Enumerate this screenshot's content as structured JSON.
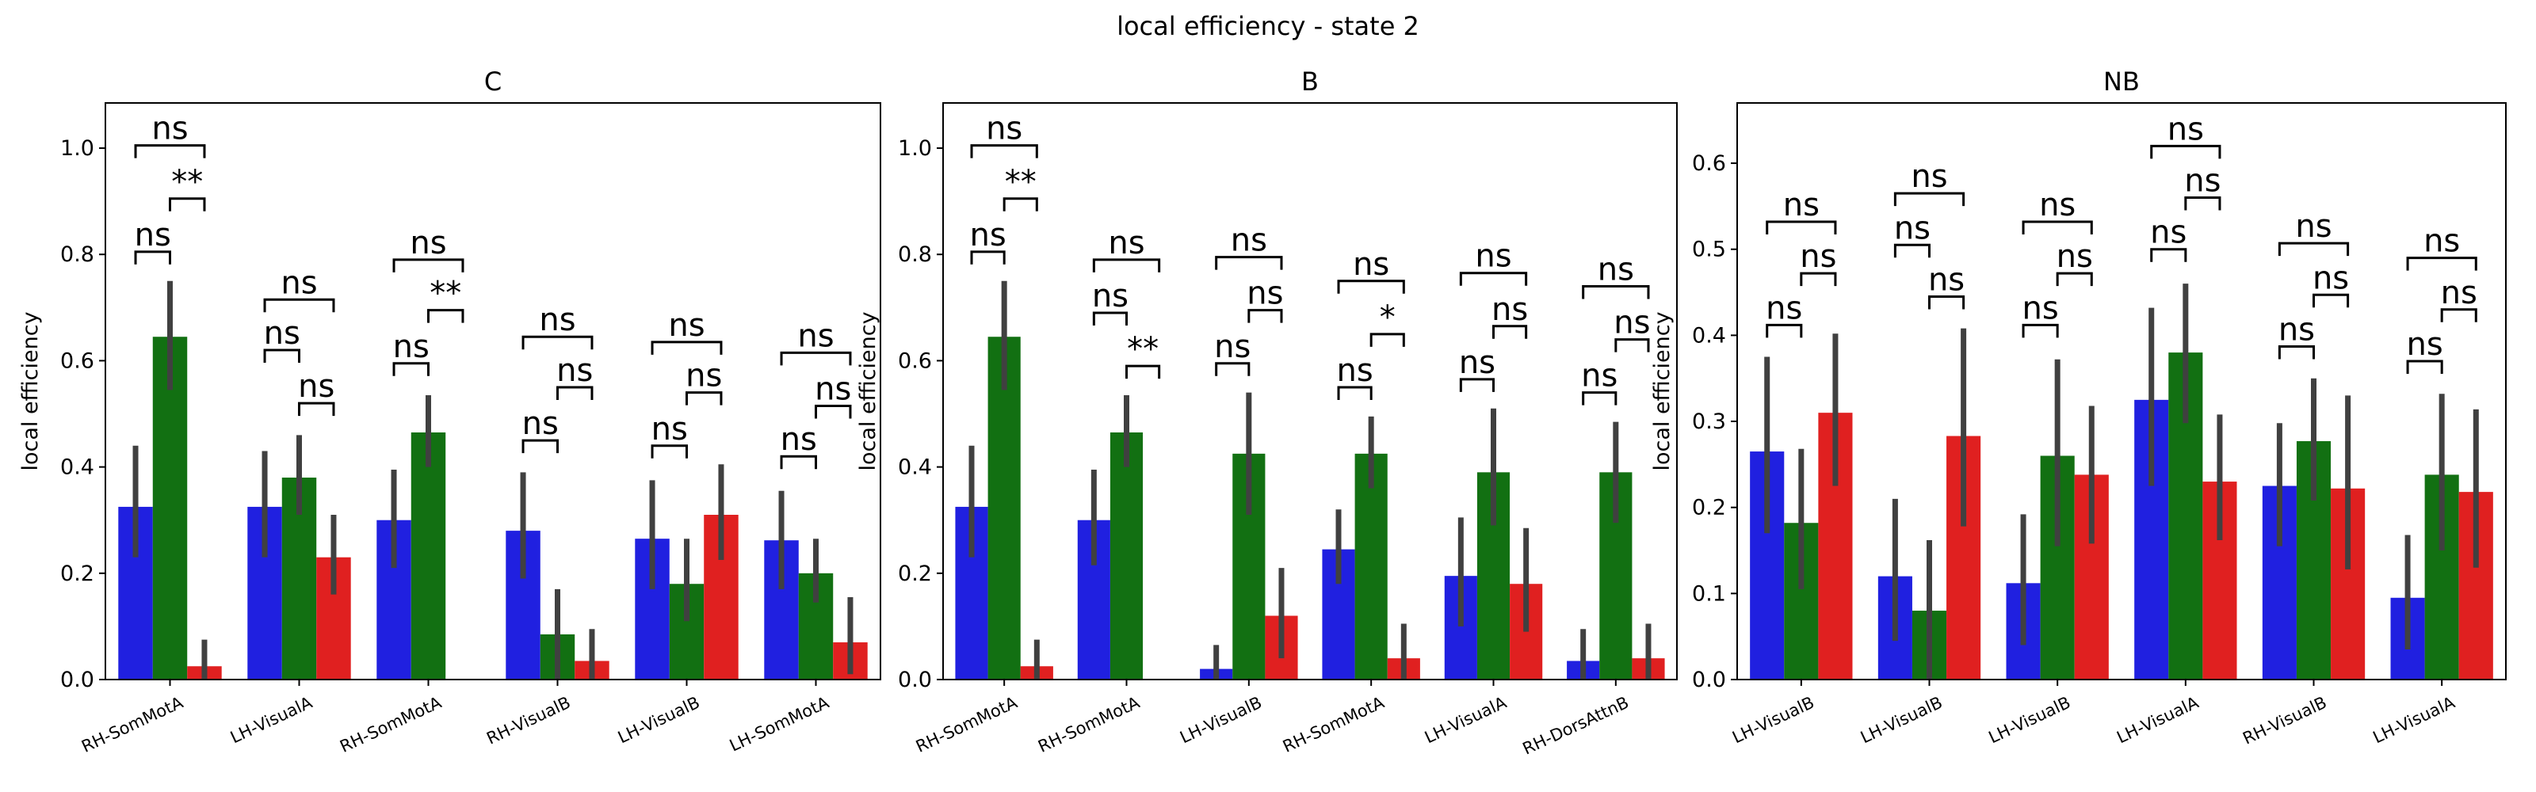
{
  "figure_title": "local efficiency - state 2",
  "colors": {
    "blue": "#2020e0",
    "green": "#127012",
    "red": "#e02020",
    "errbar": "#404040"
  },
  "chart_data": [
    {
      "type": "bar",
      "title": "C",
      "ylabel": "local efficiency",
      "ylim": [
        0,
        1.085
      ],
      "yticks": [
        "0.0",
        "0.2",
        "0.4",
        "0.6",
        "0.8",
        "1.0"
      ],
      "ytick_values": [
        0,
        0.2,
        0.4,
        0.6,
        0.8,
        1.0
      ],
      "categories": [
        "RH-SomMotA",
        "LH-VisualA",
        "RH-SomMotA",
        "RH-VisualB",
        "LH-VisualB",
        "LH-SomMotA"
      ],
      "series": [
        {
          "values": [
            0.325,
            0.325,
            0.3,
            0.28,
            0.265,
            0.262
          ],
          "err_low": [
            0.23,
            0.23,
            0.21,
            0.19,
            0.17,
            0.17
          ],
          "err_high": [
            0.44,
            0.43,
            0.395,
            0.39,
            0.375,
            0.355
          ]
        },
        {
          "values": [
            0.645,
            0.38,
            0.465,
            0.085,
            0.18,
            0.2
          ],
          "err_low": [
            0.545,
            0.31,
            0.4,
            0.0,
            0.11,
            0.145
          ],
          "err_high": [
            0.75,
            0.46,
            0.535,
            0.17,
            0.265,
            0.265
          ]
        },
        {
          "values": [
            0.025,
            0.23,
            0.0,
            0.035,
            0.31,
            0.07
          ],
          "err_low": [
            0.0,
            0.16,
            0.0,
            0.0,
            0.225,
            0.01
          ],
          "err_high": [
            0.075,
            0.31,
            0.0,
            0.095,
            0.405,
            0.155
          ]
        }
      ],
      "annotations": [
        {
          "category": 0,
          "pair": [
            0,
            1
          ],
          "level": 0.805,
          "text": "ns"
        },
        {
          "category": 0,
          "pair": [
            1,
            2
          ],
          "level": 0.905,
          "text": "**"
        },
        {
          "category": 0,
          "pair": [
            0,
            2
          ],
          "level": 1.005,
          "text": "ns"
        },
        {
          "category": 1,
          "pair": [
            0,
            1
          ],
          "level": 0.62,
          "text": "ns"
        },
        {
          "category": 1,
          "pair": [
            1,
            2
          ],
          "level": 0.52,
          "text": "ns"
        },
        {
          "category": 1,
          "pair": [
            0,
            2
          ],
          "level": 0.715,
          "text": "ns"
        },
        {
          "category": 2,
          "pair": [
            0,
            1
          ],
          "level": 0.595,
          "text": "ns"
        },
        {
          "category": 2,
          "pair": [
            1,
            2
          ],
          "level": 0.695,
          "text": "**"
        },
        {
          "category": 2,
          "pair": [
            0,
            2
          ],
          "level": 0.79,
          "text": "ns"
        },
        {
          "category": 3,
          "pair": [
            0,
            1
          ],
          "level": 0.45,
          "text": "ns"
        },
        {
          "category": 3,
          "pair": [
            1,
            2
          ],
          "level": 0.55,
          "text": "ns"
        },
        {
          "category": 3,
          "pair": [
            0,
            2
          ],
          "level": 0.645,
          "text": "ns"
        },
        {
          "category": 4,
          "pair": [
            0,
            1
          ],
          "level": 0.44,
          "text": "ns"
        },
        {
          "category": 4,
          "pair": [
            1,
            2
          ],
          "level": 0.54,
          "text": "ns"
        },
        {
          "category": 4,
          "pair": [
            0,
            2
          ],
          "level": 0.635,
          "text": "ns"
        },
        {
          "category": 5,
          "pair": [
            0,
            1
          ],
          "level": 0.42,
          "text": "ns"
        },
        {
          "category": 5,
          "pair": [
            1,
            2
          ],
          "level": 0.515,
          "text": "ns"
        },
        {
          "category": 5,
          "pair": [
            0,
            2
          ],
          "level": 0.615,
          "text": "ns"
        }
      ]
    },
    {
      "type": "bar",
      "title": "B",
      "ylabel": "local efficiency",
      "ylim": [
        0,
        1.085
      ],
      "yticks": [
        "0.0",
        "0.2",
        "0.4",
        "0.6",
        "0.8",
        "1.0"
      ],
      "ytick_values": [
        0,
        0.2,
        0.4,
        0.6,
        0.8,
        1.0
      ],
      "categories": [
        "RH-SomMotA",
        "RH-SomMotA",
        "LH-VisualB",
        "RH-SomMotA",
        "LH-VisualA",
        "RH-DorsAttnB"
      ],
      "series": [
        {
          "values": [
            0.325,
            0.3,
            0.02,
            0.245,
            0.195,
            0.035
          ],
          "err_low": [
            0.23,
            0.215,
            0.0,
            0.18,
            0.1,
            0.0
          ],
          "err_high": [
            0.44,
            0.395,
            0.065,
            0.32,
            0.305,
            0.095
          ]
        },
        {
          "values": [
            0.645,
            0.465,
            0.425,
            0.425,
            0.39,
            0.39
          ],
          "err_low": [
            0.545,
            0.4,
            0.31,
            0.36,
            0.29,
            0.295
          ],
          "err_high": [
            0.75,
            0.535,
            0.54,
            0.495,
            0.51,
            0.485
          ]
        },
        {
          "values": [
            0.025,
            0.0,
            0.12,
            0.04,
            0.18,
            0.04
          ],
          "err_low": [
            0.0,
            0.0,
            0.04,
            0.0,
            0.09,
            0.0
          ],
          "err_high": [
            0.075,
            0.0,
            0.21,
            0.105,
            0.285,
            0.105
          ]
        }
      ],
      "annotations": [
        {
          "category": 0,
          "pair": [
            0,
            1
          ],
          "level": 0.805,
          "text": "ns"
        },
        {
          "category": 0,
          "pair": [
            1,
            2
          ],
          "level": 0.905,
          "text": "**"
        },
        {
          "category": 0,
          "pair": [
            0,
            2
          ],
          "level": 1.005,
          "text": "ns"
        },
        {
          "category": 1,
          "pair": [
            0,
            1
          ],
          "level": 0.69,
          "text": "ns"
        },
        {
          "category": 1,
          "pair": [
            1,
            2
          ],
          "level": 0.59,
          "text": "**"
        },
        {
          "category": 1,
          "pair": [
            0,
            2
          ],
          "level": 0.79,
          "text": "ns"
        },
        {
          "category": 2,
          "pair": [
            0,
            1
          ],
          "level": 0.595,
          "text": "ns"
        },
        {
          "category": 2,
          "pair": [
            1,
            2
          ],
          "level": 0.695,
          "text": "ns"
        },
        {
          "category": 2,
          "pair": [
            0,
            2
          ],
          "level": 0.795,
          "text": "ns"
        },
        {
          "category": 3,
          "pair": [
            0,
            1
          ],
          "level": 0.55,
          "text": "ns"
        },
        {
          "category": 3,
          "pair": [
            1,
            2
          ],
          "level": 0.65,
          "text": "*"
        },
        {
          "category": 3,
          "pair": [
            0,
            2
          ],
          "level": 0.75,
          "text": "ns"
        },
        {
          "category": 4,
          "pair": [
            0,
            1
          ],
          "level": 0.565,
          "text": "ns"
        },
        {
          "category": 4,
          "pair": [
            1,
            2
          ],
          "level": 0.665,
          "text": "ns"
        },
        {
          "category": 4,
          "pair": [
            0,
            2
          ],
          "level": 0.765,
          "text": "ns"
        },
        {
          "category": 5,
          "pair": [
            0,
            1
          ],
          "level": 0.54,
          "text": "ns"
        },
        {
          "category": 5,
          "pair": [
            1,
            2
          ],
          "level": 0.64,
          "text": "ns"
        },
        {
          "category": 5,
          "pair": [
            0,
            2
          ],
          "level": 0.74,
          "text": "ns"
        }
      ]
    },
    {
      "type": "bar",
      "title": "NB",
      "ylabel": "local efficiency",
      "ylim": [
        0,
        0.67
      ],
      "yticks": [
        "0.0",
        "0.1",
        "0.2",
        "0.3",
        "0.4",
        "0.5",
        "0.6"
      ],
      "ytick_values": [
        0,
        0.1,
        0.2,
        0.3,
        0.4,
        0.5,
        0.6
      ],
      "categories": [
        "LH-VisualB",
        "LH-VisualB",
        "LH-VisualB",
        "LH-VisualA",
        "RH-VisualB",
        "LH-VisualA"
      ],
      "series": [
        {
          "values": [
            0.265,
            0.12,
            0.112,
            0.325,
            0.225,
            0.095
          ],
          "err_low": [
            0.17,
            0.045,
            0.04,
            0.225,
            0.155,
            0.035
          ],
          "err_high": [
            0.375,
            0.21,
            0.192,
            0.432,
            0.298,
            0.168
          ]
        },
        {
          "values": [
            0.182,
            0.08,
            0.26,
            0.38,
            0.277,
            0.238
          ],
          "err_low": [
            0.105,
            0.0,
            0.155,
            0.298,
            0.208,
            0.15
          ],
          "err_high": [
            0.268,
            0.162,
            0.372,
            0.46,
            0.35,
            0.332
          ]
        },
        {
          "values": [
            0.31,
            0.283,
            0.238,
            0.23,
            0.222,
            0.218
          ],
          "err_low": [
            0.225,
            0.178,
            0.158,
            0.162,
            0.128,
            0.13
          ],
          "err_high": [
            0.402,
            0.408,
            0.318,
            0.308,
            0.33,
            0.314
          ]
        }
      ],
      "annotations": [
        {
          "category": 0,
          "pair": [
            0,
            1
          ],
          "level": 0.412,
          "text": "ns"
        },
        {
          "category": 0,
          "pair": [
            1,
            2
          ],
          "level": 0.472,
          "text": "ns"
        },
        {
          "category": 0,
          "pair": [
            0,
            2
          ],
          "level": 0.532,
          "text": "ns"
        },
        {
          "category": 1,
          "pair": [
            0,
            1
          ],
          "level": 0.505,
          "text": "ns"
        },
        {
          "category": 1,
          "pair": [
            1,
            2
          ],
          "level": 0.445,
          "text": "ns"
        },
        {
          "category": 1,
          "pair": [
            0,
            2
          ],
          "level": 0.565,
          "text": "ns"
        },
        {
          "category": 2,
          "pair": [
            0,
            1
          ],
          "level": 0.412,
          "text": "ns"
        },
        {
          "category": 2,
          "pair": [
            1,
            2
          ],
          "level": 0.472,
          "text": "ns"
        },
        {
          "category": 2,
          "pair": [
            0,
            2
          ],
          "level": 0.532,
          "text": "ns"
        },
        {
          "category": 3,
          "pair": [
            0,
            1
          ],
          "level": 0.5,
          "text": "ns"
        },
        {
          "category": 3,
          "pair": [
            1,
            2
          ],
          "level": 0.56,
          "text": "ns"
        },
        {
          "category": 3,
          "pair": [
            0,
            2
          ],
          "level": 0.62,
          "text": "ns"
        },
        {
          "category": 4,
          "pair": [
            0,
            1
          ],
          "level": 0.387,
          "text": "ns"
        },
        {
          "category": 4,
          "pair": [
            1,
            2
          ],
          "level": 0.447,
          "text": "ns"
        },
        {
          "category": 4,
          "pair": [
            0,
            2
          ],
          "level": 0.507,
          "text": "ns"
        },
        {
          "category": 5,
          "pair": [
            0,
            1
          ],
          "level": 0.37,
          "text": "ns"
        },
        {
          "category": 5,
          "pair": [
            1,
            2
          ],
          "level": 0.43,
          "text": "ns"
        },
        {
          "category": 5,
          "pair": [
            0,
            2
          ],
          "level": 0.49,
          "text": "ns"
        }
      ]
    }
  ]
}
